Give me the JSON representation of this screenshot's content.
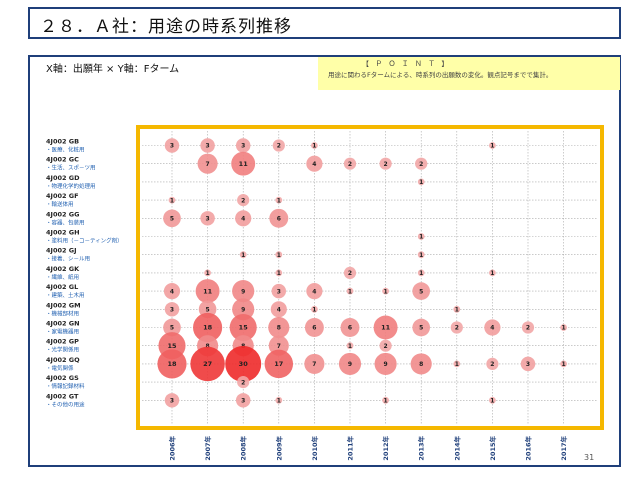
{
  "slide": {
    "title": "２８．Ａ社：用途の時系列推移",
    "axis_description": "X軸：出願年 × Y軸：Fターム",
    "point_title": "【 Ｐ Ｏ Ｉ Ｎ Ｔ 】",
    "point_text": "用途に関わるFタームによる、時系列の出願数の変化。観点記号までで集計。",
    "page_number": "31"
  },
  "colors": {
    "frame_border": "#1f3f7a",
    "plot_border": "#f5b800",
    "bubble_light": "#f2aaaa",
    "bubble_dark": "#ee2a2a",
    "label_blue": "#1f5fb0"
  },
  "chart_data": {
    "type": "bubble",
    "x": [
      "2006年",
      "2007年",
      "2008年",
      "2009年",
      "2010年",
      "2011年",
      "2012年",
      "2013年",
      "2014年",
      "2015年",
      "2016年",
      "2017年"
    ],
    "y": [
      {
        "code": "4J002 GB",
        "desc": "・医療、化粧用"
      },
      {
        "code": "4J002 GC",
        "desc": "・生活、スポ－ツ用"
      },
      {
        "code": "4J002 GD",
        "desc": "・物理化学的処理用"
      },
      {
        "code": "4J002 GF",
        "desc": "・輸送体用"
      },
      {
        "code": "4J002 GG",
        "desc": "・容器、包装用"
      },
      {
        "code": "4J002 GH",
        "desc": "・塗料用（－コ－ティング剤）"
      },
      {
        "code": "4J002 GJ",
        "desc": "・接着、シ－ル用"
      },
      {
        "code": "4J002 GK",
        "desc": "・繊維、紙用"
      },
      {
        "code": "4J002 GL",
        "desc": "・建築、土木用"
      },
      {
        "code": "4J002 GM",
        "desc": "・機械部材用"
      },
      {
        "code": "4J002 GN",
        "desc": "・家電機器用"
      },
      {
        "code": "4J002 GP",
        "desc": "・光学関係用"
      },
      {
        "code": "4J002 GQ",
        "desc": "・電気関係"
      },
      {
        "code": "4J002 GS",
        "desc": "・情報記録材料"
      },
      {
        "code": "4J002 GT",
        "desc": "・その他の用途"
      }
    ],
    "points": [
      {
        "x": "2006年",
        "y": "4J002 GB",
        "v": 3
      },
      {
        "x": "2007年",
        "y": "4J002 GB",
        "v": 3
      },
      {
        "x": "2008年",
        "y": "4J002 GB",
        "v": 3
      },
      {
        "x": "2009年",
        "y": "4J002 GB",
        "v": 2
      },
      {
        "x": "2010年",
        "y": "4J002 GB",
        "v": 1
      },
      {
        "x": "2015年",
        "y": "4J002 GB",
        "v": 1
      },
      {
        "x": "2007年",
        "y": "4J002 GC",
        "v": 7
      },
      {
        "x": "2008年",
        "y": "4J002 GC",
        "v": 11
      },
      {
        "x": "2010年",
        "y": "4J002 GC",
        "v": 4
      },
      {
        "x": "2011年",
        "y": "4J002 GC",
        "v": 2
      },
      {
        "x": "2012年",
        "y": "4J002 GC",
        "v": 2
      },
      {
        "x": "2013年",
        "y": "4J002 GC",
        "v": 2
      },
      {
        "x": "2013年",
        "y": "4J002 GD",
        "v": 1
      },
      {
        "x": "2006年",
        "y": "4J002 GF",
        "v": 1
      },
      {
        "x": "2008年",
        "y": "4J002 GF",
        "v": 2
      },
      {
        "x": "2009年",
        "y": "4J002 GF",
        "v": 1
      },
      {
        "x": "2006年",
        "y": "4J002 GG",
        "v": 5
      },
      {
        "x": "2007年",
        "y": "4J002 GG",
        "v": 3
      },
      {
        "x": "2008年",
        "y": "4J002 GG",
        "v": 4
      },
      {
        "x": "2009年",
        "y": "4J002 GG",
        "v": 6
      },
      {
        "x": "2013年",
        "y": "4J002 GH",
        "v": 1
      },
      {
        "x": "2008年",
        "y": "4J002 GJ",
        "v": 1
      },
      {
        "x": "2009年",
        "y": "4J002 GJ",
        "v": 1
      },
      {
        "x": "2013年",
        "y": "4J002 GJ",
        "v": 1
      },
      {
        "x": "2007年",
        "y": "4J002 GK",
        "v": 1
      },
      {
        "x": "2009年",
        "y": "4J002 GK",
        "v": 1
      },
      {
        "x": "2011年",
        "y": "4J002 GK",
        "v": 2
      },
      {
        "x": "2013年",
        "y": "4J002 GK",
        "v": 1
      },
      {
        "x": "2015年",
        "y": "4J002 GK",
        "v": 1
      },
      {
        "x": "2006年",
        "y": "4J002 GL",
        "v": 4
      },
      {
        "x": "2007年",
        "y": "4J002 GL",
        "v": 11
      },
      {
        "x": "2008年",
        "y": "4J002 GL",
        "v": 9
      },
      {
        "x": "2009年",
        "y": "4J002 GL",
        "v": 3
      },
      {
        "x": "2010年",
        "y": "4J002 GL",
        "v": 4
      },
      {
        "x": "2011年",
        "y": "4J002 GL",
        "v": 1
      },
      {
        "x": "2012年",
        "y": "4J002 GL",
        "v": 1
      },
      {
        "x": "2013年",
        "y": "4J002 GL",
        "v": 5
      },
      {
        "x": "2006年",
        "y": "4J002 GM",
        "v": 3
      },
      {
        "x": "2007年",
        "y": "4J002 GM",
        "v": 5
      },
      {
        "x": "2008年",
        "y": "4J002 GM",
        "v": 9
      },
      {
        "x": "2009年",
        "y": "4J002 GM",
        "v": 4
      },
      {
        "x": "2010年",
        "y": "4J002 GM",
        "v": 1
      },
      {
        "x": "2014年",
        "y": "4J002 GM",
        "v": 1
      },
      {
        "x": "2006年",
        "y": "4J002 GN",
        "v": 5
      },
      {
        "x": "2007年",
        "y": "4J002 GN",
        "v": 18
      },
      {
        "x": "2008年",
        "y": "4J002 GN",
        "v": 15
      },
      {
        "x": "2009年",
        "y": "4J002 GN",
        "v": 8
      },
      {
        "x": "2010年",
        "y": "4J002 GN",
        "v": 6
      },
      {
        "x": "2011年",
        "y": "4J002 GN",
        "v": 6
      },
      {
        "x": "2012年",
        "y": "4J002 GN",
        "v": 11
      },
      {
        "x": "2013年",
        "y": "4J002 GN",
        "v": 5
      },
      {
        "x": "2014年",
        "y": "4J002 GN",
        "v": 2
      },
      {
        "x": "2015年",
        "y": "4J002 GN",
        "v": 4
      },
      {
        "x": "2016年",
        "y": "4J002 GN",
        "v": 2
      },
      {
        "x": "2017年",
        "y": "4J002 GN",
        "v": 1
      },
      {
        "x": "2006年",
        "y": "4J002 GP",
        "v": 15
      },
      {
        "x": "2007年",
        "y": "4J002 GP",
        "v": 8
      },
      {
        "x": "2008年",
        "y": "4J002 GP",
        "v": 8
      },
      {
        "x": "2009年",
        "y": "4J002 GP",
        "v": 7
      },
      {
        "x": "2011年",
        "y": "4J002 GP",
        "v": 1
      },
      {
        "x": "2012年",
        "y": "4J002 GP",
        "v": 2
      },
      {
        "x": "2006年",
        "y": "4J002 GQ",
        "v": 18
      },
      {
        "x": "2007年",
        "y": "4J002 GQ",
        "v": 27
      },
      {
        "x": "2008年",
        "y": "4J002 GQ",
        "v": 30
      },
      {
        "x": "2009年",
        "y": "4J002 GQ",
        "v": 17
      },
      {
        "x": "2010年",
        "y": "4J002 GQ",
        "v": 7
      },
      {
        "x": "2011年",
        "y": "4J002 GQ",
        "v": 9
      },
      {
        "x": "2012年",
        "y": "4J002 GQ",
        "v": 9
      },
      {
        "x": "2013年",
        "y": "4J002 GQ",
        "v": 8
      },
      {
        "x": "2014年",
        "y": "4J002 GQ",
        "v": 1
      },
      {
        "x": "2015年",
        "y": "4J002 GQ",
        "v": 2
      },
      {
        "x": "2016年",
        "y": "4J002 GQ",
        "v": 3
      },
      {
        "x": "2017年",
        "y": "4J002 GQ",
        "v": 1
      },
      {
        "x": "2008年",
        "y": "4J002 GS",
        "v": 2
      },
      {
        "x": "2006年",
        "y": "4J002 GT",
        "v": 3
      },
      {
        "x": "2008年",
        "y": "4J002 GT",
        "v": 3
      },
      {
        "x": "2009年",
        "y": "4J002 GT",
        "v": 1
      },
      {
        "x": "2012年",
        "y": "4J002 GT",
        "v": 1
      },
      {
        "x": "2015年",
        "y": "4J002 GT",
        "v": 1
      }
    ],
    "grid": true,
    "xlabel": "",
    "ylabel": ""
  }
}
